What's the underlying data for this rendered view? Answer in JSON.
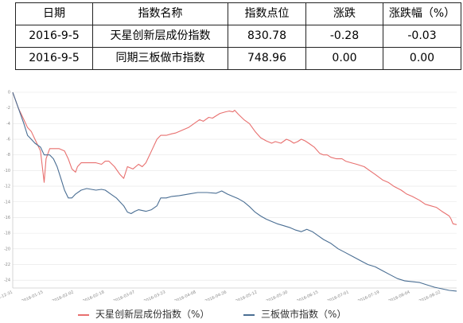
{
  "table": {
    "headers": [
      "日期",
      "指数名称",
      "指数点位",
      "涨跌",
      "涨跌幅（%）"
    ],
    "rows": [
      [
        "2016-9-5",
        "天星创新层成份指数",
        "830.78",
        "-0.28",
        "-0.03"
      ],
      [
        "2016-9-5",
        "同期三板做市指数",
        "748.96",
        "0.00",
        "0.00"
      ]
    ]
  },
  "legend": {
    "series_a": "天星创新层成份指数（%）",
    "series_b": "三板做市指数（%）"
  },
  "colors": {
    "series_a": "#e8706f",
    "series_b": "#4a6e93",
    "grid": "#e6e6e6",
    "axis": "#cccccc"
  },
  "chart_data": {
    "type": "line",
    "x_ticks": [
      "2015-12-31",
      "2016-01-15",
      "2016-02-02",
      "2016-02-18",
      "2016-03-07",
      "2016-03-23",
      "2016-04-08",
      "2016-04-26",
      "2016-05-12",
      "2016-05-30",
      "2016-06-15",
      "2016-07-01",
      "2016-07-19",
      "2016-08-04",
      "2016-08-22"
    ],
    "y_ticks": [
      0,
      -2,
      -4,
      -6,
      -8,
      -10,
      -12,
      -14,
      -16,
      -18,
      -20,
      -22,
      -24
    ],
    "ylim": [
      -25,
      0
    ],
    "grid": true,
    "legend_position": "bottom",
    "series": [
      {
        "name": "天星创新层成份指数（%）",
        "points": [
          [
            0,
            0
          ],
          [
            3,
            -2
          ],
          [
            6,
            -3.5
          ],
          [
            8,
            -4.5
          ],
          [
            10,
            -5
          ],
          [
            12,
            -6
          ],
          [
            15,
            -7.5
          ],
          [
            17,
            -11.5
          ],
          [
            18,
            -8.5
          ],
          [
            20,
            -7.2
          ],
          [
            25,
            -7.2
          ],
          [
            28,
            -7.5
          ],
          [
            30,
            -8.5
          ],
          [
            32,
            -9.8
          ],
          [
            34,
            -10.2
          ],
          [
            35,
            -9.5
          ],
          [
            37,
            -9
          ],
          [
            40,
            -9
          ],
          [
            45,
            -9
          ],
          [
            48,
            -9.2
          ],
          [
            50,
            -8.8
          ],
          [
            52,
            -8.8
          ],
          [
            55,
            -9.5
          ],
          [
            58,
            -10.5
          ],
          [
            60,
            -11
          ],
          [
            62,
            -9.5
          ],
          [
            65,
            -9.8
          ],
          [
            68,
            -9.2
          ],
          [
            70,
            -9.5
          ],
          [
            72,
            -9
          ],
          [
            75,
            -7.5
          ],
          [
            78,
            -6
          ],
          [
            80,
            -5.5
          ],
          [
            83,
            -5.5
          ],
          [
            86,
            -5.3
          ],
          [
            88,
            -5.2
          ],
          [
            90,
            -5
          ],
          [
            92,
            -4.8
          ],
          [
            95,
            -4.5
          ],
          [
            98,
            -4
          ],
          [
            101,
            -3.5
          ],
          [
            103,
            -3.7
          ],
          [
            106,
            -3.2
          ],
          [
            108,
            -3.3
          ],
          [
            110,
            -3
          ],
          [
            112,
            -2.7
          ],
          [
            115,
            -2.5
          ],
          [
            117,
            -2.4
          ],
          [
            119,
            -2.5
          ],
          [
            120,
            -2.3
          ],
          [
            122,
            -2.8
          ],
          [
            125,
            -3.5
          ],
          [
            128,
            -4
          ],
          [
            131,
            -5
          ],
          [
            134,
            -5.8
          ],
          [
            137,
            -6.2
          ],
          [
            140,
            -6.5
          ],
          [
            142,
            -6.3
          ],
          [
            145,
            -6.5
          ],
          [
            148,
            -6
          ],
          [
            150,
            -6.2
          ],
          [
            152,
            -6.5
          ],
          [
            154,
            -6.3
          ],
          [
            156,
            -6
          ],
          [
            158,
            -6.2
          ],
          [
            160,
            -6.5
          ],
          [
            163,
            -7
          ],
          [
            166,
            -7.8
          ],
          [
            168,
            -8
          ],
          [
            170,
            -8
          ],
          [
            172,
            -8.3
          ],
          [
            175,
            -8.5
          ],
          [
            178,
            -8.5
          ],
          [
            180,
            -8.8
          ],
          [
            183,
            -9
          ],
          [
            186,
            -9.2
          ],
          [
            190,
            -9.5
          ],
          [
            193,
            -10
          ],
          [
            196,
            -10.5
          ],
          [
            200,
            -11.2
          ],
          [
            203,
            -11.5
          ],
          [
            206,
            -12
          ],
          [
            210,
            -12.5
          ],
          [
            213,
            -13
          ],
          [
            216,
            -13.3
          ],
          [
            220,
            -13.8
          ],
          [
            223,
            -14.3
          ],
          [
            226,
            -14.5
          ],
          [
            229,
            -14.7
          ],
          [
            232,
            -15.2
          ],
          [
            234,
            -15.5
          ],
          [
            236,
            -15.8
          ],
          [
            237,
            -16.2
          ],
          [
            238,
            -16.8
          ],
          [
            240,
            -16.9
          ]
        ]
      },
      {
        "name": "三板做市指数（%）",
        "points": [
          [
            0,
            0
          ],
          [
            3,
            -2
          ],
          [
            6,
            -4
          ],
          [
            8,
            -5.5
          ],
          [
            10,
            -6
          ],
          [
            12,
            -6.5
          ],
          [
            15,
            -7
          ],
          [
            17,
            -8
          ],
          [
            20,
            -8
          ],
          [
            22,
            -8.5
          ],
          [
            24,
            -9.5
          ],
          [
            26,
            -11
          ],
          [
            28,
            -12.5
          ],
          [
            30,
            -13.5
          ],
          [
            32,
            -13.5
          ],
          [
            34,
            -13
          ],
          [
            37,
            -12.5
          ],
          [
            40,
            -12.3
          ],
          [
            45,
            -12.5
          ],
          [
            48,
            -12.4
          ],
          [
            50,
            -12.5
          ],
          [
            53,
            -13
          ],
          [
            56,
            -13.5
          ],
          [
            58,
            -14
          ],
          [
            60,
            -14.5
          ],
          [
            62,
            -15.3
          ],
          [
            64,
            -15.5
          ],
          [
            66,
            -15.2
          ],
          [
            68,
            -15
          ],
          [
            72,
            -15.2
          ],
          [
            75,
            -15
          ],
          [
            78,
            -14.5
          ],
          [
            80,
            -13.5
          ],
          [
            83,
            -13.5
          ],
          [
            86,
            -13.3
          ],
          [
            90,
            -13.2
          ],
          [
            95,
            -13
          ],
          [
            100,
            -12.8
          ],
          [
            105,
            -12.8
          ],
          [
            110,
            -12.9
          ],
          [
            113,
            -12.6
          ],
          [
            116,
            -13
          ],
          [
            119,
            -13.3
          ],
          [
            122,
            -13.6
          ],
          [
            125,
            -14
          ],
          [
            128,
            -14.6
          ],
          [
            131,
            -15.3
          ],
          [
            134,
            -15.8
          ],
          [
            137,
            -16.2
          ],
          [
            140,
            -16.5
          ],
          [
            143,
            -16.8
          ],
          [
            146,
            -17
          ],
          [
            150,
            -17.3
          ],
          [
            153,
            -17.6
          ],
          [
            156,
            -17.8
          ],
          [
            159,
            -17.5
          ],
          [
            162,
            -17.8
          ],
          [
            165,
            -18.3
          ],
          [
            168,
            -18.8
          ],
          [
            172,
            -19.3
          ],
          [
            176,
            -20
          ],
          [
            180,
            -20.5
          ],
          [
            184,
            -21
          ],
          [
            188,
            -21.5
          ],
          [
            192,
            -22
          ],
          [
            196,
            -22.3
          ],
          [
            200,
            -22.8
          ],
          [
            204,
            -23.3
          ],
          [
            208,
            -23.8
          ],
          [
            212,
            -24.1
          ],
          [
            216,
            -24.2
          ],
          [
            220,
            -24.3
          ],
          [
            224,
            -24.6
          ],
          [
            228,
            -24.9
          ],
          [
            232,
            -25.1
          ],
          [
            236,
            -25.3
          ],
          [
            240,
            -25.4
          ]
        ]
      }
    ]
  }
}
